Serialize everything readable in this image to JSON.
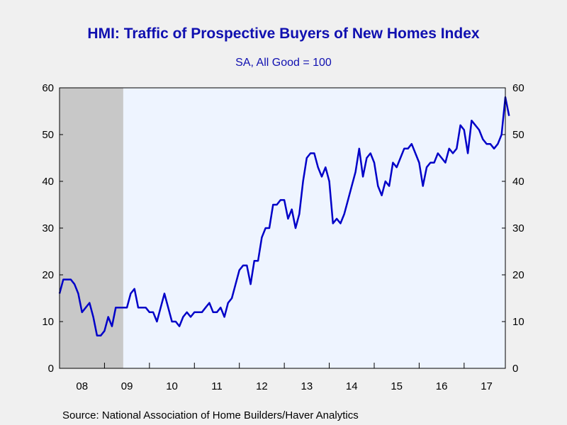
{
  "chart_data": {
    "type": "line",
    "title": "HMI: Traffic of Prospective Buyers of New Homes Index",
    "subtitle": "SA, All Good = 100",
    "source": "Source:  National Association of Home Builders/Haver Analytics",
    "ylim": [
      0,
      60
    ],
    "yticks": [
      0,
      10,
      20,
      30,
      40,
      50,
      60
    ],
    "xlim": [
      2008.0,
      2017.917
    ],
    "xtick_labels": [
      {
        "label": "08",
        "year": 2008
      },
      {
        "label": "09",
        "year": 2009
      },
      {
        "label": "10",
        "year": 2010
      },
      {
        "label": "11",
        "year": 2011
      },
      {
        "label": "12",
        "year": 2012
      },
      {
        "label": "13",
        "year": 2013
      },
      {
        "label": "14",
        "year": 2014
      },
      {
        "label": "15",
        "year": 2015
      },
      {
        "label": "16",
        "year": 2016
      },
      {
        "label": "17",
        "year": 2017
      }
    ],
    "recession": {
      "start": "2008-01",
      "end": "2009-06"
    },
    "colors": {
      "line": "#0000c8",
      "recession": "#c8c8c8",
      "plot_bg": "#eef4ff",
      "page_bg": "#f0f0f0",
      "title": "#1010b0"
    },
    "grid": false,
    "legend": "none",
    "series": [
      {
        "start": "2008-01",
        "frequency": "monthly",
        "values": [
          16,
          19,
          19,
          19,
          18,
          16,
          12,
          13,
          14,
          11,
          7,
          7,
          8,
          11,
          9,
          13,
          13,
          13,
          13,
          16,
          17,
          13,
          13,
          13,
          12,
          12,
          10,
          13,
          16,
          13,
          10,
          10,
          9,
          11,
          12,
          11,
          12,
          12,
          12,
          13,
          14,
          12,
          12,
          13,
          11,
          14,
          15,
          18,
          21,
          22,
          22,
          18,
          23,
          23,
          28,
          30,
          30,
          35,
          35,
          36,
          36,
          32,
          34,
          30,
          33,
          40,
          45,
          46,
          46,
          43,
          41,
          43,
          40,
          31,
          32,
          31,
          33,
          36,
          39,
          42,
          47,
          41,
          45,
          46,
          44,
          39,
          37,
          40,
          39,
          44,
          43,
          45,
          47,
          47,
          48,
          46,
          44,
          39,
          43,
          44,
          44,
          46,
          45,
          44,
          47,
          46,
          47,
          52,
          51,
          46,
          53,
          52,
          51,
          49,
          48,
          48,
          47,
          48,
          50,
          58,
          54
        ]
      }
    ]
  }
}
